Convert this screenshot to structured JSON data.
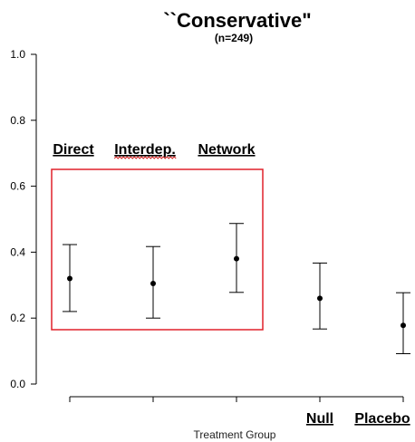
{
  "chart_data": {
    "type": "scatter",
    "title": "``Conservative\"",
    "subtitle": "(n=249)",
    "xlabel": "Treatment Group",
    "ylabel": "",
    "ylim": [
      0,
      1
    ],
    "yticks": [
      "0.0",
      "0.2",
      "0.4",
      "0.6",
      "0.8",
      "1.0"
    ],
    "grid": false,
    "categories": [
      "Direct",
      "Interdep.",
      "Network",
      "Null",
      "Placebo"
    ],
    "estimates": [
      0.32,
      0.305,
      0.38,
      0.26,
      0.178
    ],
    "lower": [
      0.22,
      0.2,
      0.278,
      0.167,
      0.092
    ],
    "upper": [
      0.423,
      0.417,
      0.487,
      0.367,
      0.277
    ],
    "highlight": {
      "color": "#e0202a",
      "covers": [
        "Direct",
        "Interdep.",
        "Network"
      ]
    },
    "misspelled_marker": "Interdep."
  }
}
